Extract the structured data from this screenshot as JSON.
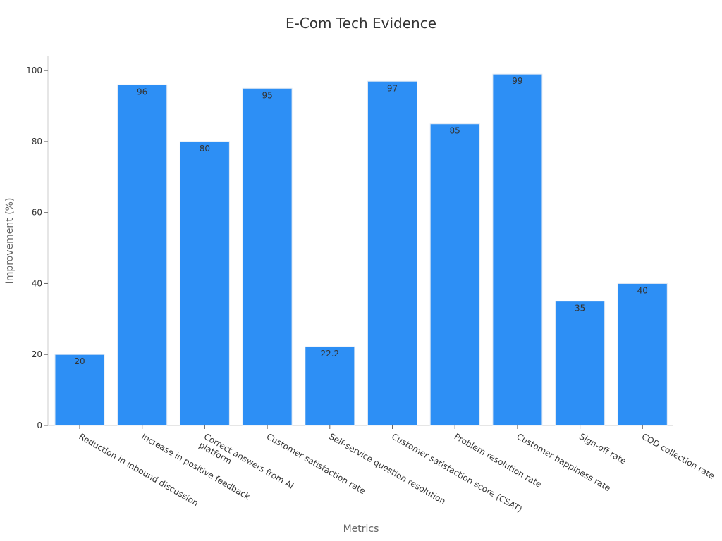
{
  "chart_data": {
    "type": "bar",
    "title": "E-Com Tech Evidence",
    "xlabel": "Metrics",
    "ylabel": "Improvement (%)",
    "ylim": [
      0,
      104
    ],
    "yticks": [
      0,
      20,
      40,
      60,
      80,
      100
    ],
    "grid": false,
    "bar_color": "#2d8ff5",
    "categories": [
      [
        "Reduction in inbound discussion"
      ],
      [
        "Increase in positive feedback"
      ],
      [
        "Correct answers from AI",
        "platform"
      ],
      [
        "Customer satisfaction rate"
      ],
      [
        "Self-service question resolution"
      ],
      [
        "Customer satisfaction score (CSAT)"
      ],
      [
        "Problem resolution rate"
      ],
      [
        "Customer happiness rate"
      ],
      [
        "Sign-off rate"
      ],
      [
        "COD collection rate"
      ]
    ],
    "values": [
      20,
      96,
      80,
      95,
      22.2,
      97,
      85,
      99,
      35,
      40
    ],
    "value_labels": [
      "20",
      "96",
      "80",
      "95",
      "22.2",
      "97",
      "85",
      "99",
      "35",
      "40"
    ]
  }
}
